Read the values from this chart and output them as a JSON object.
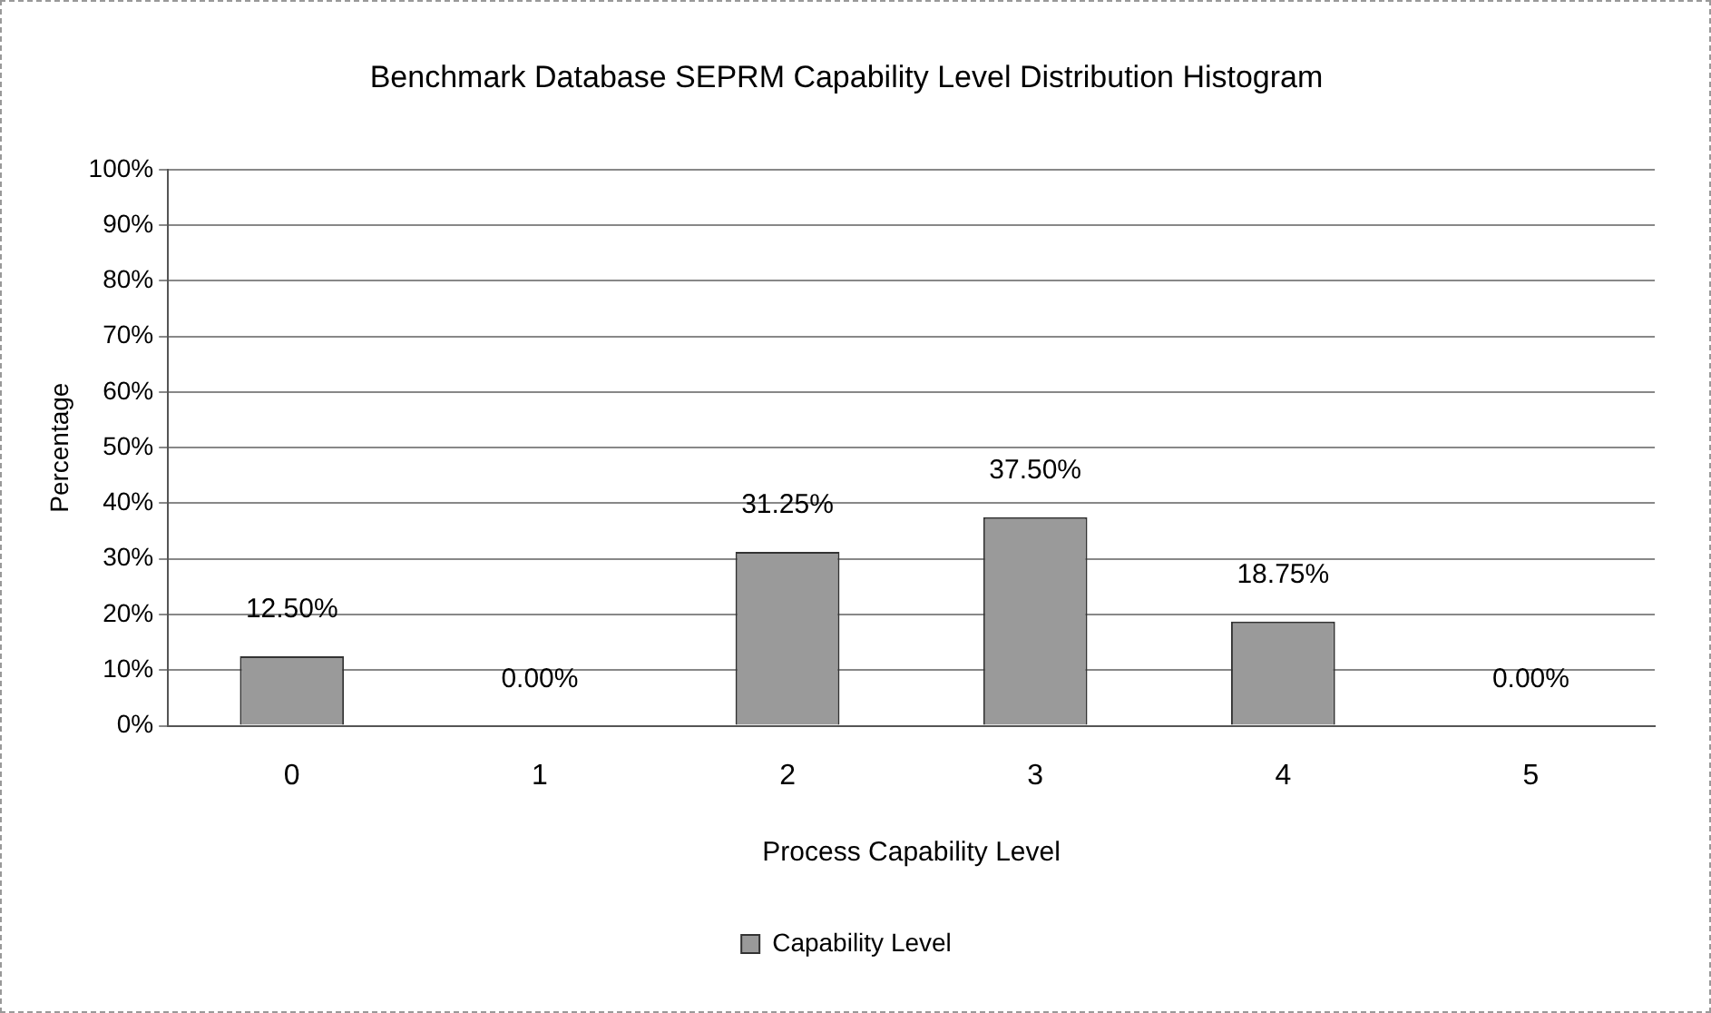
{
  "chart_data": {
    "type": "bar",
    "title": "Benchmark Database SEPRM Capability Level Distribution Histogram",
    "xlabel": "Process Capability Level",
    "ylabel": "Percentage",
    "categories": [
      "0",
      "1",
      "2",
      "3",
      "4",
      "5"
    ],
    "series": [
      {
        "name": "Capability Level",
        "color": "#9a9a9a",
        "values": [
          12.5,
          0,
          31.25,
          37.5,
          18.75,
          0
        ],
        "value_labels": [
          "12.50%",
          "0.00%",
          "31.25%",
          "37.50%",
          "18.75%",
          "0.00%"
        ]
      }
    ],
    "ylim": [
      0,
      100
    ],
    "yticks": [
      {
        "value": 0,
        "label": "0%"
      },
      {
        "value": 10,
        "label": "10%"
      },
      {
        "value": 20,
        "label": "20%"
      },
      {
        "value": 30,
        "label": "30%"
      },
      {
        "value": 40,
        "label": "40%"
      },
      {
        "value": 50,
        "label": "50%"
      },
      {
        "value": 60,
        "label": "60%"
      },
      {
        "value": 70,
        "label": "70%"
      },
      {
        "value": 80,
        "label": "80%"
      },
      {
        "value": 90,
        "label": "90%"
      },
      {
        "value": 100,
        "label": "100%"
      }
    ],
    "grid": "y",
    "legend": "bottom"
  }
}
